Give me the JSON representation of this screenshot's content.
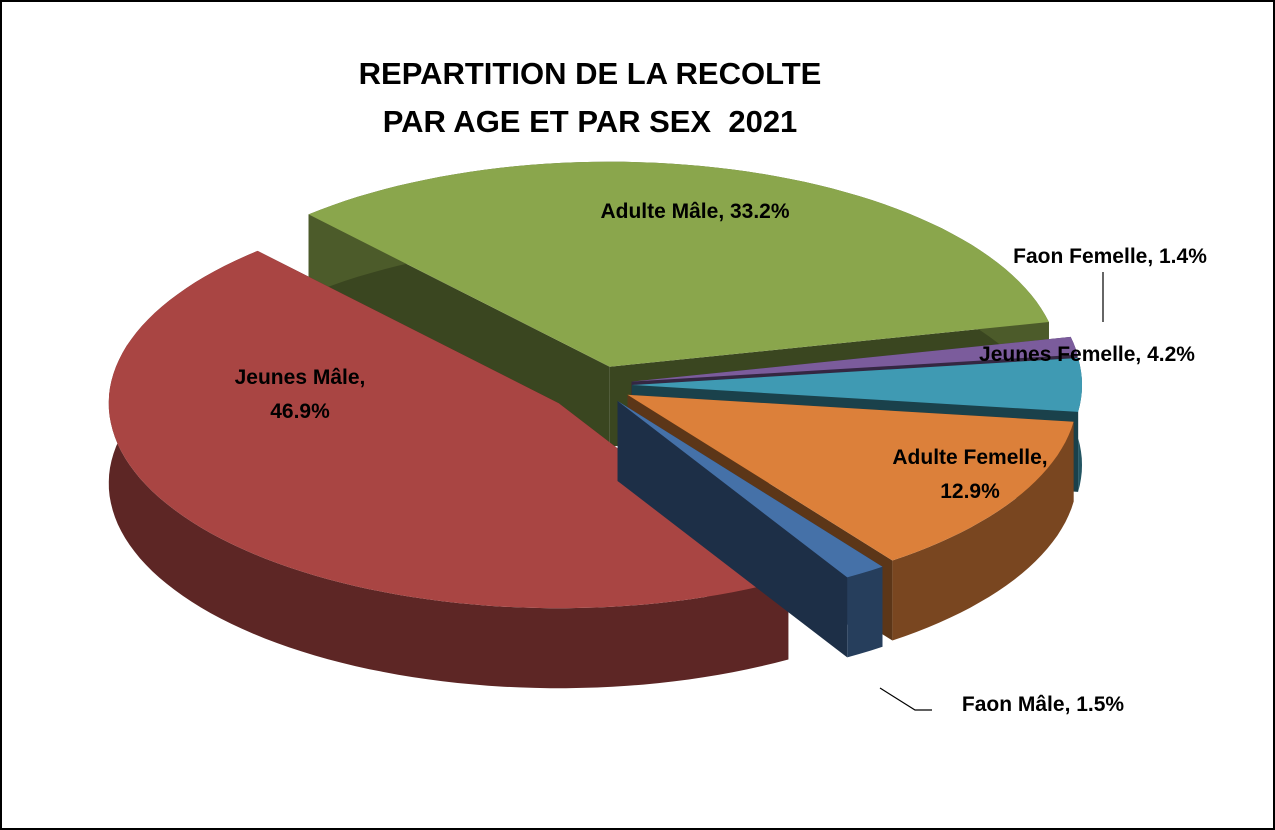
{
  "chart_data": {
    "type": "pie3d",
    "title": "REPARTITION DE LA RECOLTE\nPAR AGE ET PAR SEX  2021",
    "values": [
      33.2,
      1.4,
      4.2,
      12.9,
      1.5,
      46.9
    ],
    "value_labels": [
      "Adulte Mâle, 33.2%",
      "Faon Femelle, 1.4%",
      "Jeunes Femelle, 4.2%",
      "Adulte Femelle, 12.9%",
      "Faon Mâle, 1.5%",
      "Jeunes Mâle, 46.9%"
    ],
    "colors": [
      "#8aa64c",
      "#7b5c9c",
      "#3f9ab3",
      "#dc803a",
      "#4571a8",
      "#a94543"
    ]
  }
}
